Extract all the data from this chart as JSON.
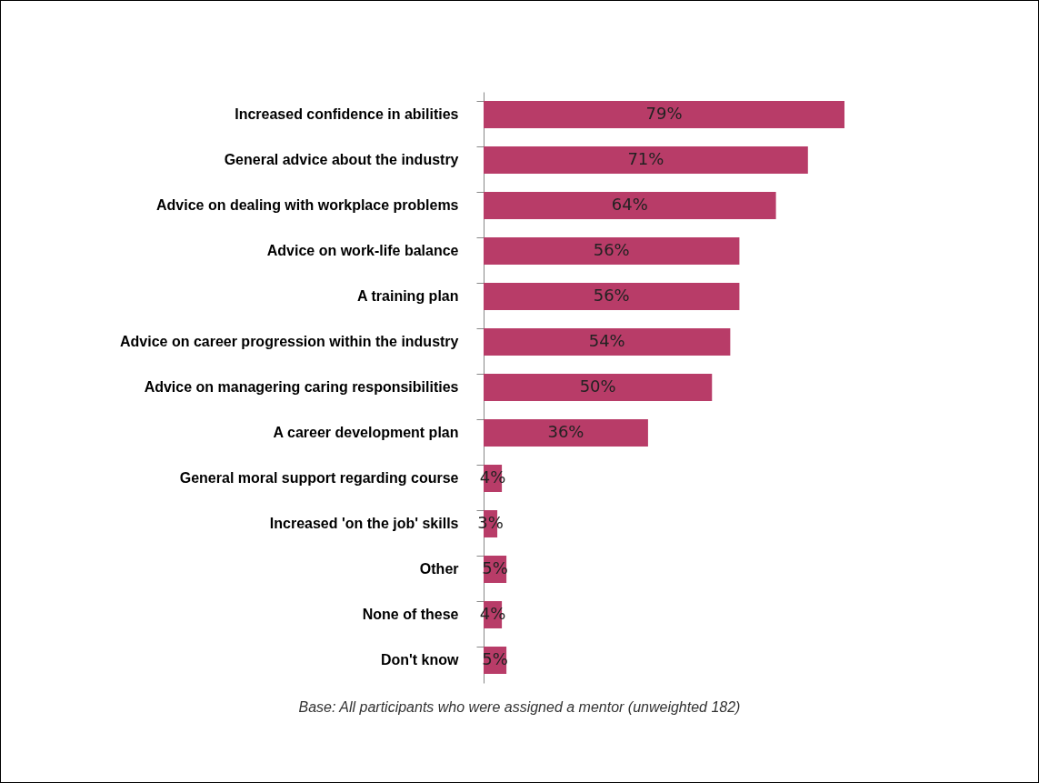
{
  "chart_data": {
    "type": "bar",
    "orientation": "horizontal",
    "categories": [
      "Increased confidence in abilities",
      "General advice about the industry",
      "Advice on dealing with workplace problems",
      "Advice on work-life balance",
      "A training plan",
      "Advice on career progression within the industry",
      "Advice on managering caring responsibilities",
      "A career development plan",
      "General moral support regarding course",
      "Increased 'on the job' skills",
      "Other",
      "None of these",
      "Don't know"
    ],
    "values": [
      79,
      71,
      64,
      56,
      56,
      54,
      50,
      36,
      4,
      3,
      5,
      4,
      5
    ],
    "value_labels": [
      "79%",
      "71%",
      "64%",
      "56%",
      "56%",
      "54%",
      "50%",
      "36%",
      "4%",
      "3%",
      "5%",
      "4%",
      "5%"
    ],
    "color": "#b83c68",
    "annotations": [
      "Base: All participants who were assigned a mentor (unweighted 182)"
    ]
  }
}
